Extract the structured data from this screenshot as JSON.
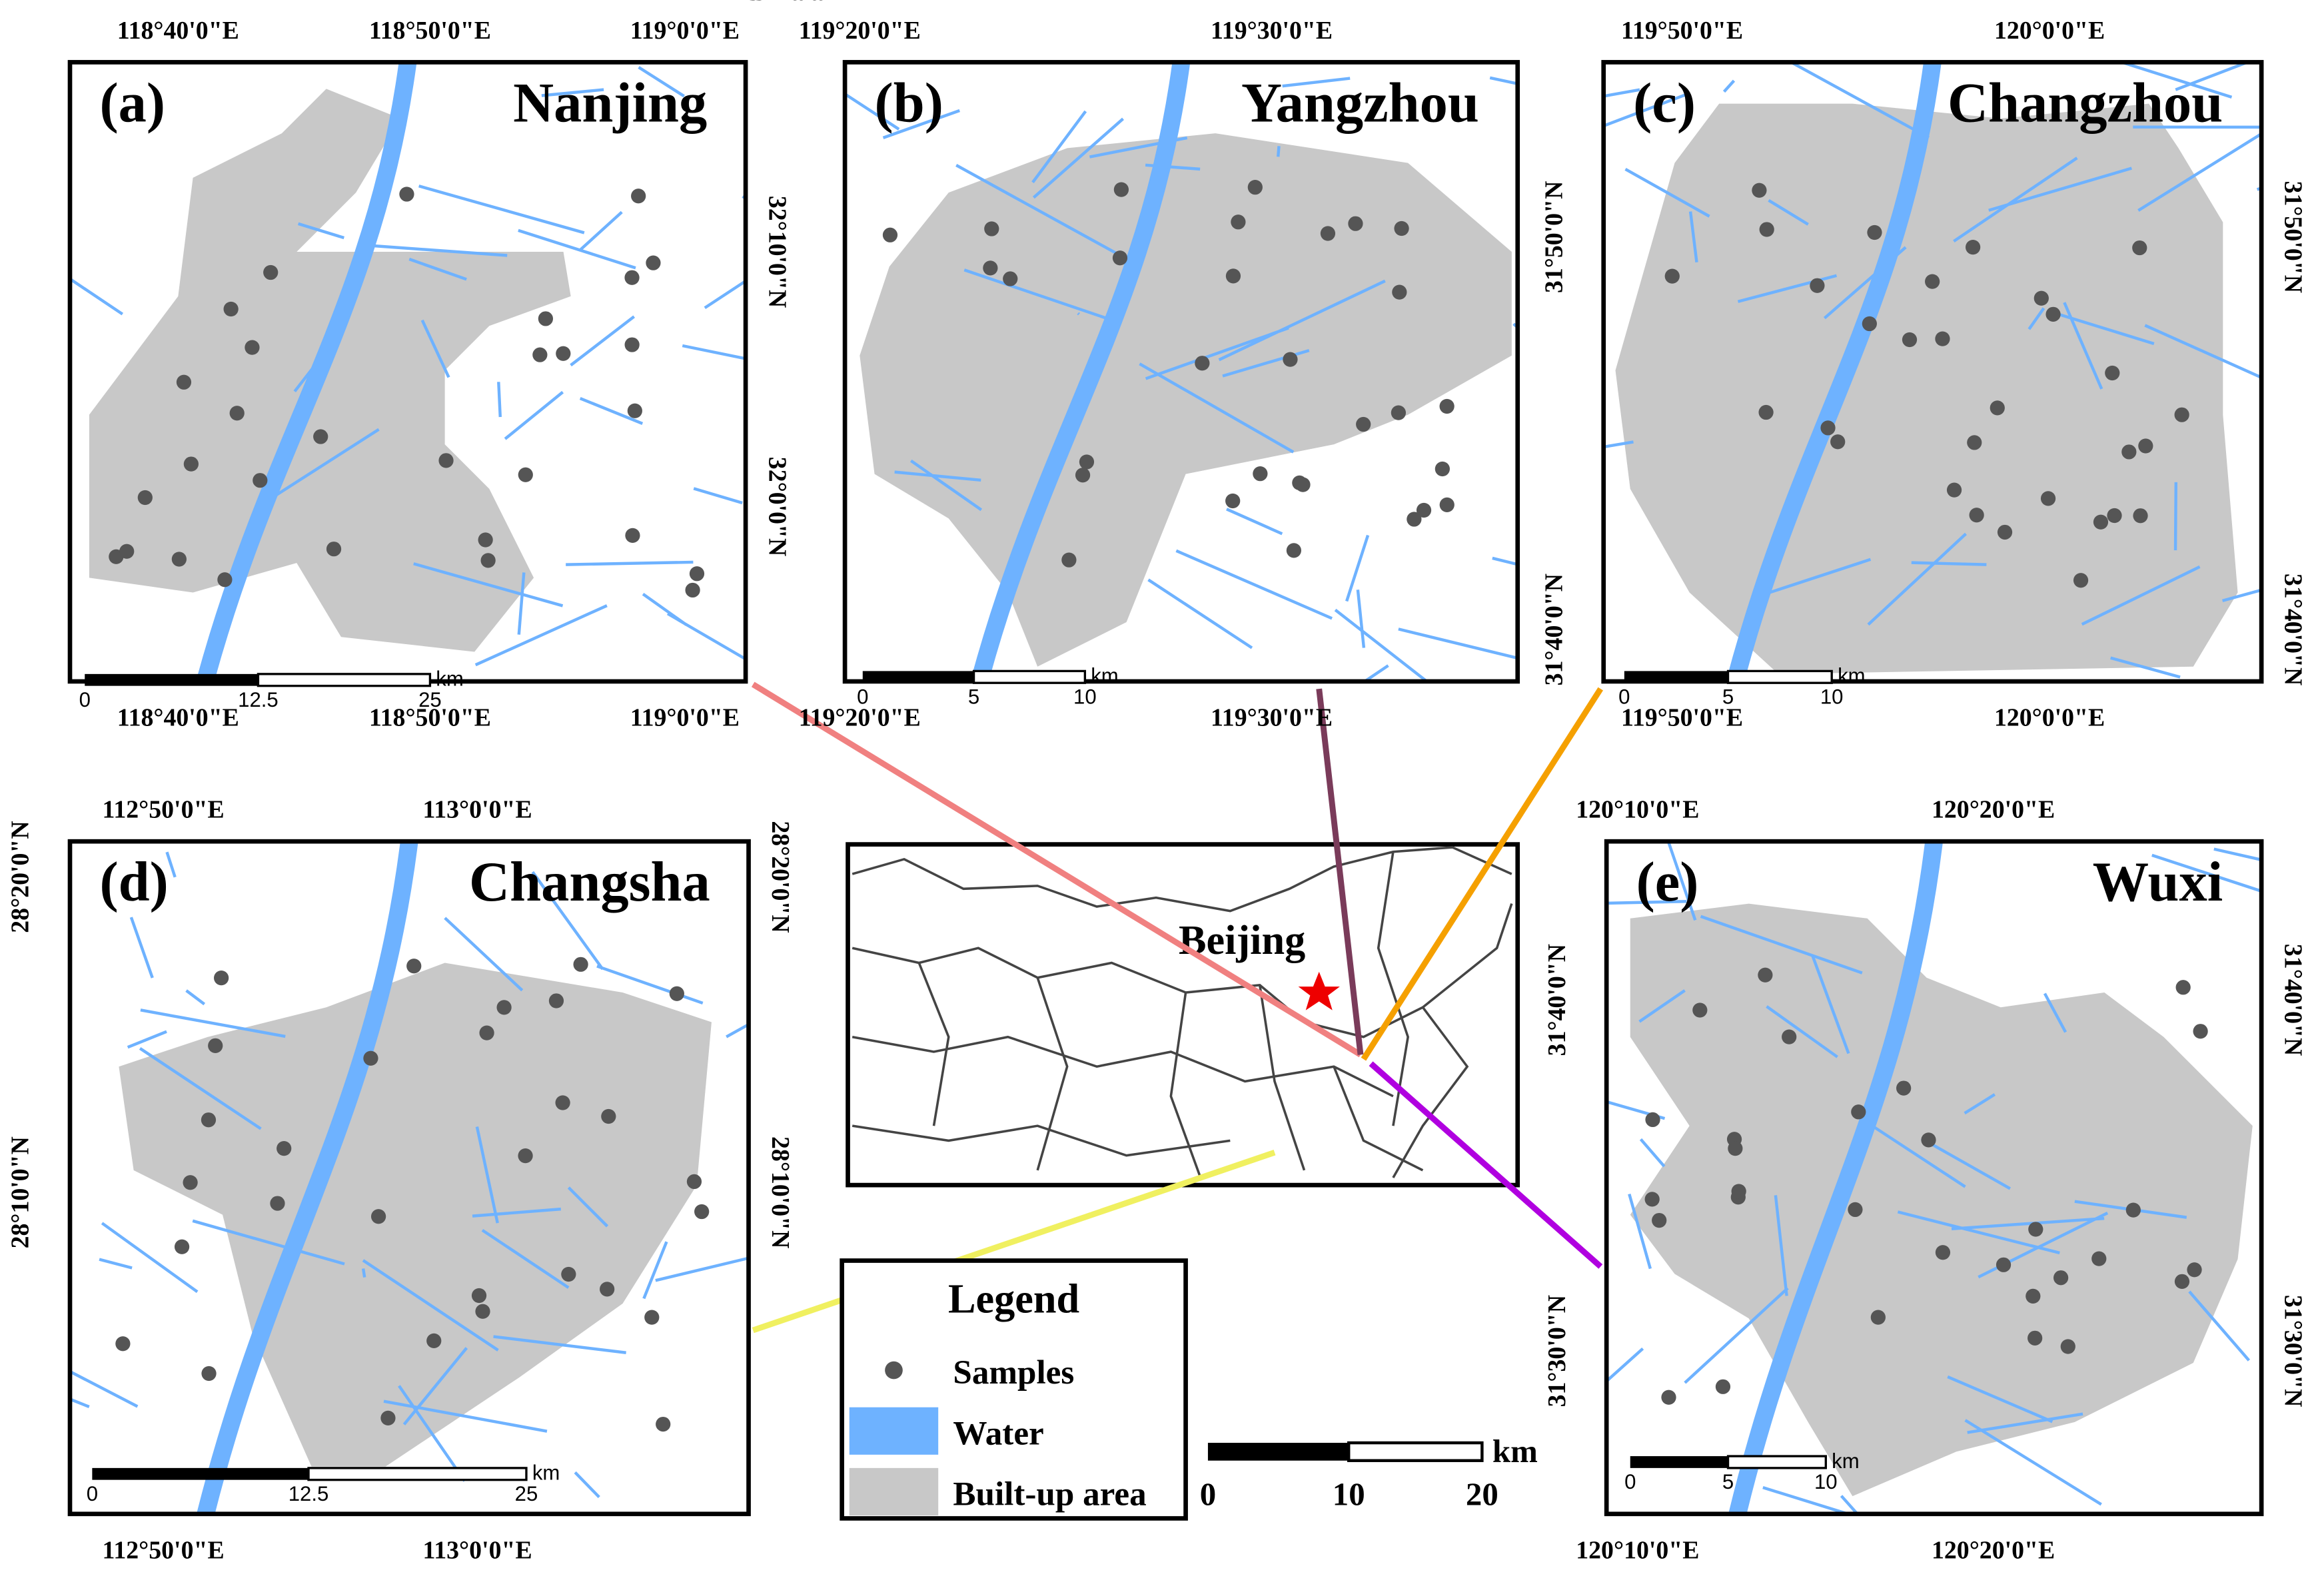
{
  "panels": [
    {
      "label": "(a)",
      "title": "Nanjing",
      "top_labels": [
        "118°40'0\"E",
        "118°50'0\"E",
        "119°0'0\"E"
      ],
      "bottom_labels": [
        "118°40'0\"E",
        "118°50'0\"E",
        "119°0'0\"E"
      ],
      "left_labels": [],
      "right_labels": [
        "32°10'0\"N",
        "32°0'0\"N"
      ],
      "scale_labels": [
        "0",
        "12.5",
        "25"
      ],
      "scale_unit": "km"
    },
    {
      "label": "(b)",
      "title": "Yangzhou",
      "top_labels": [
        "119°20'0\"E",
        "119°30'0\"E"
      ],
      "bottom_labels": [
        "119°20'0\"E",
        "119°30'0\"E"
      ],
      "left_labels": [
        "32°10'0\"N",
        "32°0'0\"N"
      ],
      "right_labels": [],
      "scale_labels": [
        "0",
        "5",
        "10"
      ],
      "scale_unit": "km"
    },
    {
      "label": "(c)",
      "title": "Changzhou",
      "top_labels": [
        "119°50'0\"E",
        "120°0'0\"E"
      ],
      "bottom_labels": [
        "119°50'0\"E",
        "120°0'0\"E"
      ],
      "left_labels": [
        "31°50'0\"N",
        "31°40'0\"N"
      ],
      "right_labels": [
        "31°50'0\"N",
        "31°40'0\"N"
      ],
      "scale_labels": [
        "0",
        "5",
        "10"
      ],
      "scale_unit": "km"
    },
    {
      "label": "(d)",
      "title": "Changsha",
      "top_labels": [
        "112°50'0\"E",
        "113°0'0\"E"
      ],
      "bottom_labels": [
        "112°50'0\"E",
        "113°0'0\"E"
      ],
      "left_labels": [
        "28°20'0\"N",
        "28°10'0\"N"
      ],
      "right_labels": [
        "28°20'0\"N",
        "28°10'0\"N"
      ],
      "scale_labels": [
        "0",
        "12.5",
        "25"
      ],
      "scale_unit": "km"
    },
    {
      "label": "(e)",
      "title": "Wuxi",
      "top_labels": [
        "120°10'0\"E",
        "120°20'0\"E"
      ],
      "bottom_labels": [
        "120°10'0\"E",
        "120°20'0\"E"
      ],
      "left_labels": [
        "31°40'0\"N",
        "31°30'0\"N"
      ],
      "right_labels": [
        "31°40'0\"N",
        "31°30'0\"N"
      ],
      "scale_labels": [
        "0",
        "5",
        "10"
      ],
      "scale_unit": "km"
    }
  ],
  "inset": {
    "label": "Beijing",
    "scale_labels": [
      "0",
      "10",
      "20"
    ],
    "scale_unit": "km"
  },
  "legend": {
    "title": "Legend",
    "items": [
      "Samples",
      "Water",
      "Built-up area"
    ]
  }
}
